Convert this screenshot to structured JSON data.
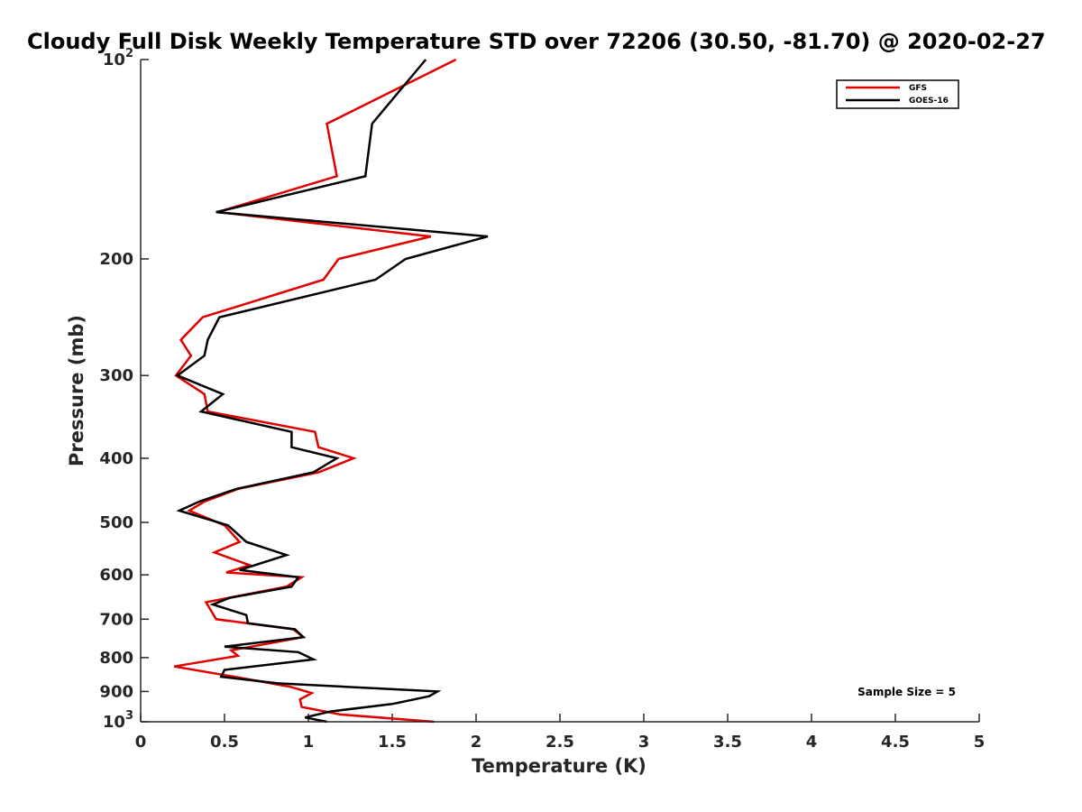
{
  "chart_data": {
    "type": "line",
    "title": "Cloudy Full Disk Weekly Temperature STD over 72206 (30.50, -81.70) @ 2020-02-27",
    "xlabel": "Temperature (K)",
    "ylabel": "Pressure (mb)",
    "xlim": [
      0,
      5
    ],
    "ylim": [
      100,
      1000
    ],
    "y_scale": "log",
    "y_reversed": true,
    "grid": false,
    "legend_position": "top-right",
    "x_ticks": [
      0,
      0.5,
      1,
      1.5,
      2,
      2.5,
      3,
      3.5,
      4,
      4.5,
      5
    ],
    "x_tick_labels": [
      "0",
      "0.5",
      "1",
      "1.5",
      "2",
      "2.5",
      "3",
      "3.5",
      "4",
      "4.5",
      "5"
    ],
    "y_ticks": [
      100,
      200,
      300,
      400,
      500,
      600,
      700,
      800,
      900,
      1000
    ],
    "y_tick_labels": [
      {
        "base": "10",
        "exp": "2"
      },
      {
        "base": "200",
        "exp": ""
      },
      {
        "base": "300",
        "exp": ""
      },
      {
        "base": "400",
        "exp": ""
      },
      {
        "base": "500",
        "exp": ""
      },
      {
        "base": "600",
        "exp": ""
      },
      {
        "base": "700",
        "exp": ""
      },
      {
        "base": "800",
        "exp": ""
      },
      {
        "base": "900",
        "exp": ""
      },
      {
        "base": "10",
        "exp": "3"
      }
    ],
    "series": [
      {
        "name": "GFS",
        "color": "#e00000",
        "points": [
          [
            1.88,
            100
          ],
          [
            1.11,
            125
          ],
          [
            1.17,
            150
          ],
          [
            0.46,
            170
          ],
          [
            1.73,
            185
          ],
          [
            1.18,
            200
          ],
          [
            1.09,
            215
          ],
          [
            0.37,
            245
          ],
          [
            0.24,
            265
          ],
          [
            0.3,
            280
          ],
          [
            0.21,
            300
          ],
          [
            0.38,
            320
          ],
          [
            0.4,
            340
          ],
          [
            1.04,
            365
          ],
          [
            1.06,
            385
          ],
          [
            1.27,
            400
          ],
          [
            1.06,
            420
          ],
          [
            0.58,
            445
          ],
          [
            0.38,
            465
          ],
          [
            0.29,
            480
          ],
          [
            0.5,
            505
          ],
          [
            0.59,
            535
          ],
          [
            0.44,
            555
          ],
          [
            0.65,
            580
          ],
          [
            0.51,
            595
          ],
          [
            0.96,
            605
          ],
          [
            0.87,
            625
          ],
          [
            0.39,
            660
          ],
          [
            0.45,
            700
          ],
          [
            0.91,
            725
          ],
          [
            0.97,
            745
          ],
          [
            0.54,
            780
          ],
          [
            0.58,
            795
          ],
          [
            0.2,
            825
          ],
          [
            0.56,
            855
          ],
          [
            0.89,
            885
          ],
          [
            1.02,
            905
          ],
          [
            0.95,
            925
          ],
          [
            0.96,
            950
          ],
          [
            1.19,
            975
          ],
          [
            1.75,
            1000
          ]
        ]
      },
      {
        "name": "GOES-16",
        "color": "#000000",
        "points": [
          [
            1.7,
            100
          ],
          [
            1.38,
            125
          ],
          [
            1.34,
            150
          ],
          [
            0.45,
            170
          ],
          [
            2.07,
            185
          ],
          [
            1.58,
            200
          ],
          [
            1.4,
            215
          ],
          [
            0.47,
            245
          ],
          [
            0.4,
            265
          ],
          [
            0.38,
            280
          ],
          [
            0.22,
            300
          ],
          [
            0.49,
            320
          ],
          [
            0.36,
            340
          ],
          [
            0.9,
            365
          ],
          [
            0.9,
            385
          ],
          [
            1.17,
            400
          ],
          [
            1.03,
            420
          ],
          [
            0.57,
            445
          ],
          [
            0.35,
            465
          ],
          [
            0.23,
            480
          ],
          [
            0.52,
            505
          ],
          [
            0.63,
            535
          ],
          [
            0.87,
            560
          ],
          [
            0.59,
            590
          ],
          [
            0.94,
            605
          ],
          [
            0.9,
            625
          ],
          [
            0.53,
            650
          ],
          [
            0.43,
            665
          ],
          [
            0.63,
            690
          ],
          [
            0.64,
            710
          ],
          [
            0.92,
            725
          ],
          [
            0.97,
            745
          ],
          [
            0.5,
            770
          ],
          [
            0.94,
            785
          ],
          [
            1.03,
            805
          ],
          [
            0.5,
            835
          ],
          [
            0.48,
            855
          ],
          [
            0.82,
            875
          ],
          [
            1.77,
            900
          ],
          [
            1.72,
            915
          ],
          [
            1.5,
            940
          ],
          [
            1.13,
            965
          ],
          [
            0.98,
            985
          ],
          [
            1.11,
            1000
          ]
        ]
      }
    ],
    "annotation": "Sample Size = 5"
  }
}
